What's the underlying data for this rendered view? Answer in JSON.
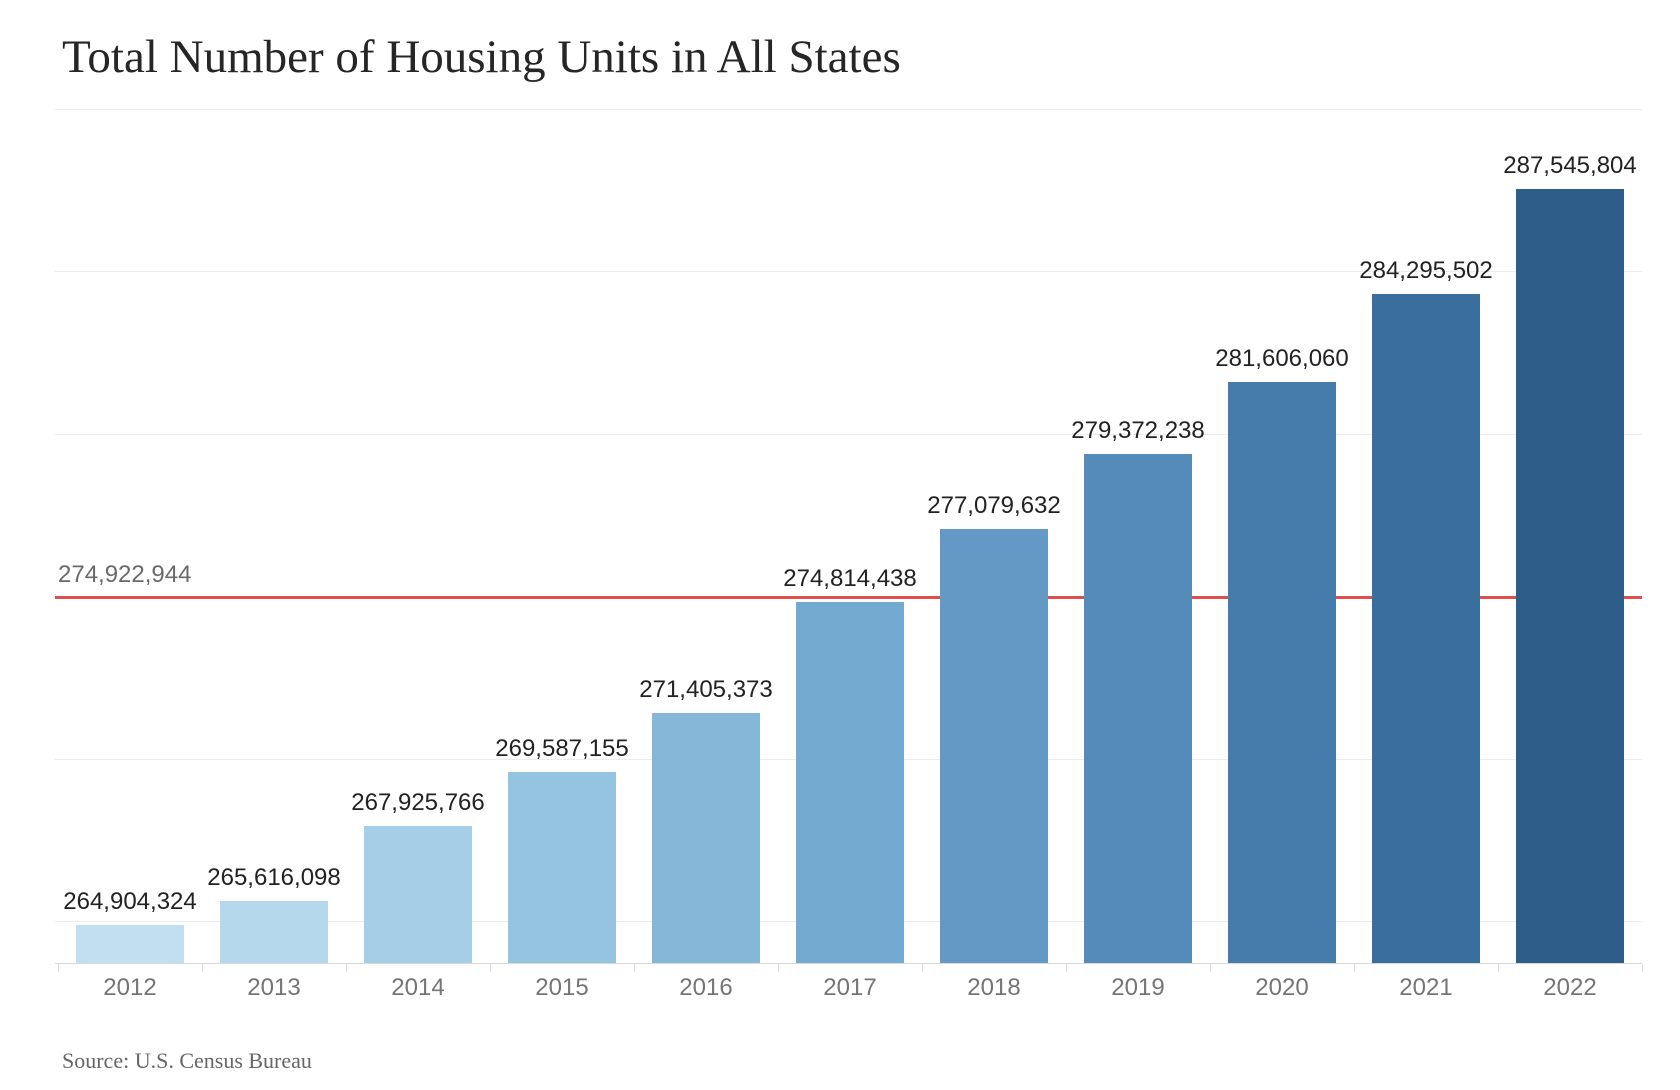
{
  "title": "Total Number of Housing Units in All States",
  "source": "Source: U.S. Census Bureau",
  "chart_data": {
    "type": "bar",
    "title": "Total Number of Housing Units in All States",
    "xlabel": "",
    "ylabel": "",
    "categories": [
      "2012",
      "2013",
      "2014",
      "2015",
      "2016",
      "2017",
      "2018",
      "2019",
      "2020",
      "2021",
      "2022"
    ],
    "values": [
      264904324,
      265616098,
      267925766,
      269587155,
      271405373,
      274814438,
      277079632,
      279372238,
      281606060,
      284295502,
      287545804
    ],
    "value_labels": [
      "264,904,324",
      "265,616,098",
      "267,925,766",
      "269,587,155",
      "271,405,373",
      "274,814,438",
      "277,079,632",
      "279,372,238",
      "281,606,060",
      "284,295,502",
      "287,545,804"
    ],
    "bar_colors": [
      "#c1dff0",
      "#b5d8ec",
      "#a4cfe6",
      "#94c4df",
      "#84b7d8",
      "#74aacf",
      "#6399c4",
      "#548bb8",
      "#467cab",
      "#3a6e9d",
      "#2d5d88"
    ],
    "ylim": [
      263720000,
      290120000
    ],
    "gridlines": [
      265000000,
      270000000,
      275000000,
      280000000,
      285000000,
      290000000
    ],
    "grid": "horizontal-only, no y tick labels",
    "legend": "none",
    "reference_line": {
      "value": 274922944,
      "label": "274,922,944",
      "color": "#df504d"
    },
    "source_note": "Source: U.S. Census Bureau"
  }
}
